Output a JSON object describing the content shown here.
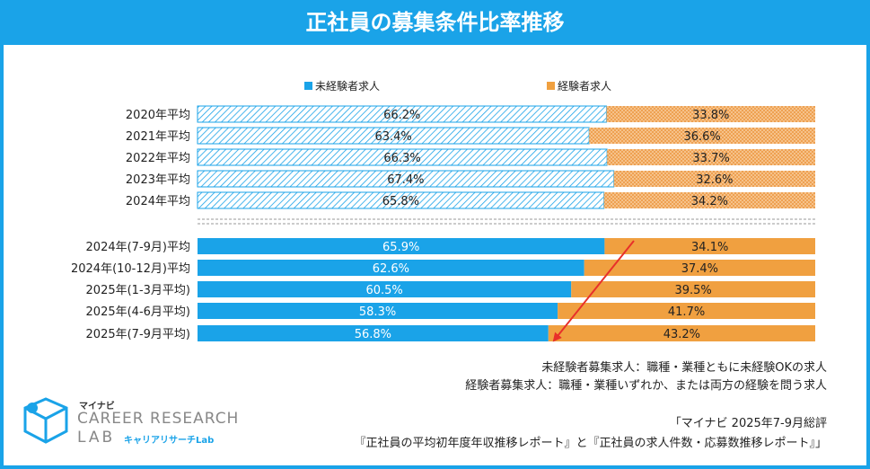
{
  "title": "正社員の募集条件比率推移",
  "colors": {
    "frame": "#1aa3e8",
    "blue": "#1aa3e8",
    "orange": "#f0a040",
    "arrow": "#e8302a"
  },
  "chart_data": {
    "type": "bar",
    "orientation": "horizontal",
    "stacked": true,
    "normalized": true,
    "legend": [
      "未経験者求人",
      "経験者求人"
    ],
    "categories": [
      "2020年平均",
      "2021年平均",
      "2022年平均",
      "2023年平均",
      "2024年平均",
      "2024年(7-9月)平均",
      "2024年(10-12月)平均",
      "2025年(1-3月平均)",
      "2025年(4-6月平均)",
      "2025年(7-9月平均)"
    ],
    "series": [
      {
        "name": "未経験者求人",
        "values": [
          66.2,
          63.4,
          66.3,
          67.4,
          65.8,
          65.9,
          62.6,
          60.5,
          58.3,
          56.8
        ],
        "labels": [
          "66.2%",
          "63.4%",
          "66.3%",
          "67.4%",
          "65.8%",
          "65.9%",
          "62.6%",
          "60.5%",
          "58.3%",
          "56.8%"
        ]
      },
      {
        "name": "経験者求人",
        "values": [
          33.8,
          36.6,
          33.7,
          32.6,
          34.2,
          34.1,
          37.4,
          39.5,
          41.7,
          43.2
        ],
        "labels": [
          "33.8%",
          "36.6%",
          "33.7%",
          "32.6%",
          "34.2%",
          "34.1%",
          "37.4%",
          "39.5%",
          "41.7%",
          "43.2%"
        ]
      }
    ],
    "patterned_rows": 5,
    "annotation": "arrow from 2024年(7-9月)平均 boundary to 2025年(7-9月平均) boundary (decline)",
    "xlim": [
      0,
      100
    ]
  },
  "notes": [
    "未経験者募集求人：職種・業種ともに未経験OKの求人",
    "経験者募集求人：職種・業種いずれか、または両方の経験を問う求人"
  ],
  "source": [
    "「マイナビ 2025年7-9月総評",
    "『正社員の平均初年度年収推移レポート』と『正社員の求人件数・応募数推移レポート』」"
  ],
  "logo": {
    "brand": "マイナビ",
    "line1": "CAREER RESEARCH",
    "line2": "LAB",
    "sub": "キャリアリサーチLab"
  }
}
